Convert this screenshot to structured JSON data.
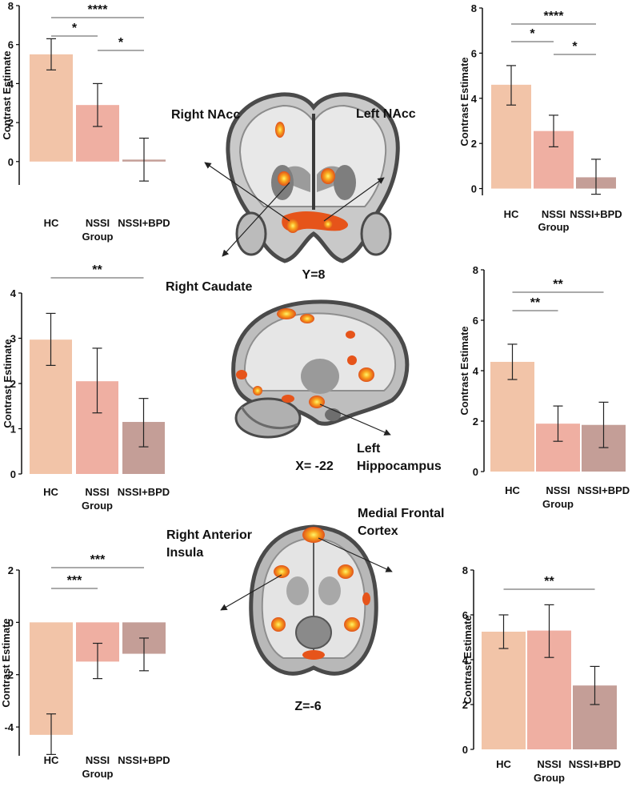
{
  "colors": {
    "hc": "#F2C4A8",
    "nssi": "#EFAFA2",
    "nssi_bpd": "#C49E97",
    "axis": "#000000",
    "sig": "#555555"
  },
  "brain_labels": {
    "right_nacc": "Right NAcc",
    "left_nacc": "Left NAcc",
    "y_coord": "Y=8",
    "right_caudate": "Right Caudate",
    "left_hippocampus_1": "Left",
    "left_hippocampus_2": "Hippocampus",
    "x_coord": "X= -22",
    "right_insula_1": "Right Anterior",
    "right_insula_2": "Insula",
    "mfc_1": "Medial Frontal",
    "mfc_2": "Cortex",
    "z_coord": "Z=-6"
  },
  "chart_data": [
    {
      "id": "right_nacc",
      "type": "bar",
      "categories": [
        "HC",
        "NSSI",
        "NSSI+BPD"
      ],
      "values": [
        5.5,
        2.9,
        0.1
      ],
      "errors_low": [
        4.7,
        1.8,
        -1.0
      ],
      "errors_high": [
        6.3,
        4.0,
        1.2
      ],
      "ylabel": "Contrast Estimate",
      "xlabel": "Group",
      "ylim": [
        -1.2,
        8
      ],
      "yticks": [
        0,
        2,
        4,
        6,
        8
      ],
      "sig": [
        {
          "from": 0,
          "to": 1,
          "label": "*"
        },
        {
          "from": 1,
          "to": 2,
          "label": "*"
        },
        {
          "from": 0,
          "to": 2,
          "label": "****"
        }
      ]
    },
    {
      "id": "left_nacc",
      "type": "bar",
      "categories": [
        "HC",
        "NSSI",
        "NSSI+BPD"
      ],
      "values": [
        4.6,
        2.55,
        0.5
      ],
      "errors_low": [
        3.7,
        1.85,
        -0.25
      ],
      "errors_high": [
        5.45,
        3.25,
        1.3
      ],
      "ylabel": "Contrast Estimate",
      "xlabel": "Group",
      "ylim": [
        -0.3,
        8
      ],
      "yticks": [
        0,
        2,
        4,
        6,
        8
      ],
      "sig": [
        {
          "from": 0,
          "to": 1,
          "label": "*"
        },
        {
          "from": 1,
          "to": 2,
          "label": "*"
        },
        {
          "from": 0,
          "to": 2,
          "label": "****"
        }
      ]
    },
    {
      "id": "right_caudate",
      "type": "bar",
      "categories": [
        "HC",
        "NSSI",
        "NSSI+BPD"
      ],
      "values": [
        2.97,
        2.05,
        1.15
      ],
      "errors_low": [
        2.4,
        1.35,
        0.6
      ],
      "errors_high": [
        3.55,
        2.78,
        1.67
      ],
      "ylabel": "Contrast Estimate",
      "xlabel": "Group",
      "ylim": [
        0,
        4
      ],
      "yticks": [
        0,
        1,
        2,
        3,
        4
      ],
      "sig": [
        {
          "from": 0,
          "to": 2,
          "label": "**"
        }
      ]
    },
    {
      "id": "left_hippocampus",
      "type": "bar",
      "categories": [
        "HC",
        "NSSI",
        "NSSI+BPD"
      ],
      "values": [
        4.35,
        1.9,
        1.85
      ],
      "errors_low": [
        3.65,
        1.2,
        0.95
      ],
      "errors_high": [
        5.05,
        2.6,
        2.75
      ],
      "ylabel": "Contrast Estimate",
      "xlabel": "Group",
      "ylim": [
        0,
        8
      ],
      "yticks": [
        0,
        2,
        4,
        6,
        8
      ],
      "sig": [
        {
          "from": 0,
          "to": 1,
          "label": "**"
        },
        {
          "from": 0,
          "to": 2,
          "label": "**"
        }
      ]
    },
    {
      "id": "right_anterior_insula",
      "type": "bar",
      "categories": [
        "HC",
        "NSSI",
        "NSSI+BPD"
      ],
      "values": [
        -4.3,
        -1.5,
        -1.2
      ],
      "errors_low": [
        -5.05,
        -2.15,
        -1.85
      ],
      "errors_high": [
        -3.5,
        -0.8,
        -0.6
      ],
      "ylabel": "Contrast Estimate",
      "xlabel": "Group",
      "ylim": [
        -5.1,
        2
      ],
      "yticks": [
        -4,
        -2,
        0,
        2
      ],
      "sig": [
        {
          "from": 0,
          "to": 1,
          "label": "***"
        },
        {
          "from": 0,
          "to": 2,
          "label": "***"
        }
      ]
    },
    {
      "id": "medial_frontal_cortex",
      "type": "bar",
      "categories": [
        "HC",
        "NSSI",
        "NSSI+BPD"
      ],
      "values": [
        5.25,
        5.3,
        2.85
      ],
      "errors_low": [
        4.5,
        4.1,
        2.0
      ],
      "errors_high": [
        6.0,
        6.45,
        3.7
      ],
      "ylabel": "Contrast Estimate",
      "xlabel": "Group",
      "ylim": [
        0,
        8
      ],
      "yticks": [
        0,
        2,
        4,
        6,
        8
      ],
      "sig": [
        {
          "from": 0,
          "to": 2,
          "label": "**"
        }
      ]
    }
  ]
}
